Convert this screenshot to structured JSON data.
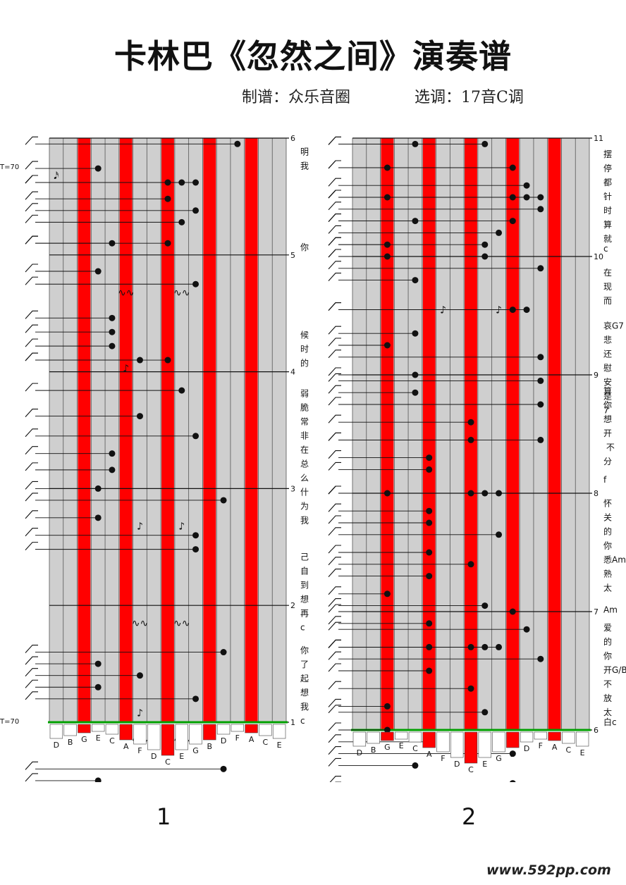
{
  "title": "卡林巴《忽然之间》演奏谱",
  "credits": {
    "arranger": "制谱：众乐音圈",
    "tuning": "选调：17音C调"
  },
  "tempo": "T=70",
  "tine_keys": [
    "D",
    "B",
    "G",
    "E",
    "C",
    "A",
    "F",
    "D",
    "C",
    "E",
    "G",
    "B",
    "D",
    "F",
    "A",
    "C",
    "E"
  ],
  "red_keys": [
    2,
    5,
    8,
    11,
    14
  ],
  "colors": {
    "red": "#ff0000",
    "gray": "#cfcfcf",
    "green": "#00a000"
  },
  "pages": [
    {
      "page_number": "1",
      "measures": [
        "6",
        "5",
        "4",
        "3",
        "2",
        "1"
      ],
      "lyrics": [
        {
          "m": 0.08,
          "text": "明\n我"
        },
        {
          "m": 0.9,
          "text": "你"
        },
        {
          "m": 1.65,
          "text": "候\n时\n的"
        },
        {
          "m": 2.15,
          "text": "弱\n脆\n常\n非\n在\n总\n么\n什\n为\n我"
        },
        {
          "m": 3.55,
          "text": "己\n自\n到\n想\n再\nc"
        },
        {
          "m": 4.35,
          "text": "你\n了\n起\n想\n我\nc"
        }
      ],
      "notes": [
        [
          0.05,
          13
        ],
        [
          0.26,
          3
        ],
        [
          0.38,
          8
        ],
        [
          0.38,
          9
        ],
        [
          0.38,
          10
        ],
        [
          0.52,
          8
        ],
        [
          0.62,
          10
        ],
        [
          0.72,
          9
        ],
        [
          0.9,
          4
        ],
        [
          0.9,
          8
        ],
        [
          1.14,
          3
        ],
        [
          1.25,
          10
        ],
        [
          1.54,
          4
        ],
        [
          1.66,
          4
        ],
        [
          1.78,
          4
        ],
        [
          1.9,
          6
        ],
        [
          1.9,
          8
        ],
        [
          2.16,
          9
        ],
        [
          2.38,
          6
        ],
        [
          2.55,
          10
        ],
        [
          2.7,
          4
        ],
        [
          2.84,
          4
        ],
        [
          3.0,
          3
        ],
        [
          3.1,
          12
        ],
        [
          3.25,
          3
        ],
        [
          3.4,
          10
        ],
        [
          3.52,
          10
        ],
        [
          4.4,
          12
        ],
        [
          4.5,
          3
        ],
        [
          4.6,
          6
        ],
        [
          4.7,
          3
        ],
        [
          4.8,
          10
        ],
        [
          5.4,
          12
        ],
        [
          5.5,
          3
        ],
        [
          5.6,
          13
        ],
        [
          5.7,
          3
        ],
        [
          5.8,
          10
        ]
      ],
      "symbols": [
        {
          "m": 0.35,
          "k": 0,
          "c": "𝅘𝅥𝅯"
        },
        {
          "m": 1.35,
          "k": 5,
          "c": "∿∿"
        },
        {
          "m": 1.35,
          "k": 9,
          "c": "∿∿"
        },
        {
          "m": 2.0,
          "k": 5,
          "c": "♪"
        },
        {
          "m": 3.35,
          "k": 6,
          "c": "♪"
        },
        {
          "m": 3.35,
          "k": 9,
          "c": "♪"
        },
        {
          "m": 4.18,
          "k": 6,
          "c": "∿∿"
        },
        {
          "m": 4.18,
          "k": 9,
          "c": "∿∿"
        },
        {
          "m": 5.18,
          "k": 6,
          "c": "∿∿"
        },
        {
          "m": 5.18,
          "k": 9,
          "c": "∿∿"
        },
        {
          "m": 4.95,
          "k": 6,
          "c": "♪"
        },
        {
          "m": 5.95,
          "k": 6,
          "c": "♪"
        },
        {
          "m": 5.95,
          "k": 9,
          "c": "♪"
        }
      ]
    },
    {
      "page_number": "2",
      "measures": [
        "11",
        "10",
        "9",
        "8",
        "7",
        "6"
      ],
      "lyrics": [
        {
          "m": 0.1,
          "text": "摆\n停\n都\n针\n时\n算\n就"
        },
        {
          "m": 0.9,
          "text": "c"
        },
        {
          "m": 1.1,
          "text": "在\n现\n而"
        },
        {
          "m": 1.55,
          "text": "哀G7\n悲\n还\n慰\n安\n是\n7"
        },
        {
          "m": 2.1,
          "text": "算\n你\n想\n开\n 不\n分"
        },
        {
          "m": 2.85,
          "text": "f"
        },
        {
          "m": 3.05,
          "text": "怀\n关\n的\n你\n悉AmG\n熟\n太"
        },
        {
          "m": 3.95,
          "text": "Am"
        },
        {
          "m": 4.1,
          "text": "爱\n的\n你\n开G/B\n不\n放\n太"
        },
        {
          "m": 4.9,
          "text": "白c"
        }
      ],
      "notes": [
        [
          0.05,
          4
        ],
        [
          0.05,
          9
        ],
        [
          0.25,
          2
        ],
        [
          0.25,
          11
        ],
        [
          0.4,
          12
        ],
        [
          0.5,
          2
        ],
        [
          0.5,
          11
        ],
        [
          0.5,
          12
        ],
        [
          0.5,
          13
        ],
        [
          0.6,
          13
        ],
        [
          0.7,
          4
        ],
        [
          0.7,
          11
        ],
        [
          0.8,
          10
        ],
        [
          0.9,
          2
        ],
        [
          0.9,
          9
        ],
        [
          1.0,
          2
        ],
        [
          1.0,
          9
        ],
        [
          1.1,
          13
        ],
        [
          1.2,
          4
        ],
        [
          1.45,
          11
        ],
        [
          1.45,
          12
        ],
        [
          1.65,
          4
        ],
        [
          1.75,
          2
        ],
        [
          1.85,
          13
        ],
        [
          2.0,
          4
        ],
        [
          2.05,
          13
        ],
        [
          2.15,
          4
        ],
        [
          2.25,
          13
        ],
        [
          2.4,
          8
        ],
        [
          2.55,
          8
        ],
        [
          2.55,
          13
        ],
        [
          2.7,
          5
        ],
        [
          2.8,
          5
        ],
        [
          3.0,
          2
        ],
        [
          3.0,
          8
        ],
        [
          3.0,
          9
        ],
        [
          3.0,
          10
        ],
        [
          3.15,
          5
        ],
        [
          3.25,
          5
        ],
        [
          3.35,
          10
        ],
        [
          3.5,
          5
        ],
        [
          3.6,
          8
        ],
        [
          3.7,
          5
        ],
        [
          3.85,
          2
        ],
        [
          3.95,
          9
        ],
        [
          4.0,
          11
        ],
        [
          4.1,
          5
        ],
        [
          4.15,
          12
        ],
        [
          4.3,
          5
        ],
        [
          4.3,
          8
        ],
        [
          4.3,
          9
        ],
        [
          4.3,
          10
        ],
        [
          4.4,
          13
        ],
        [
          4.5,
          5
        ],
        [
          4.65,
          8
        ],
        [
          4.8,
          2
        ],
        [
          4.85,
          9
        ],
        [
          5.0,
          2
        ],
        [
          5.1,
          5
        ],
        [
          5.2,
          11
        ],
        [
          5.3,
          4
        ],
        [
          5.45,
          11
        ],
        [
          5.5,
          4
        ],
        [
          5.6,
          5
        ],
        [
          5.7,
          11
        ],
        [
          5.8,
          5
        ],
        [
          6.0,
          4
        ],
        [
          5.95,
          10
        ]
      ],
      "symbols": [
        {
          "m": 1.48,
          "k": 6,
          "c": "♪"
        },
        {
          "m": 1.48,
          "k": 10,
          "c": "♪"
        }
      ]
    }
  ],
  "watermark": "www.592pp.com"
}
